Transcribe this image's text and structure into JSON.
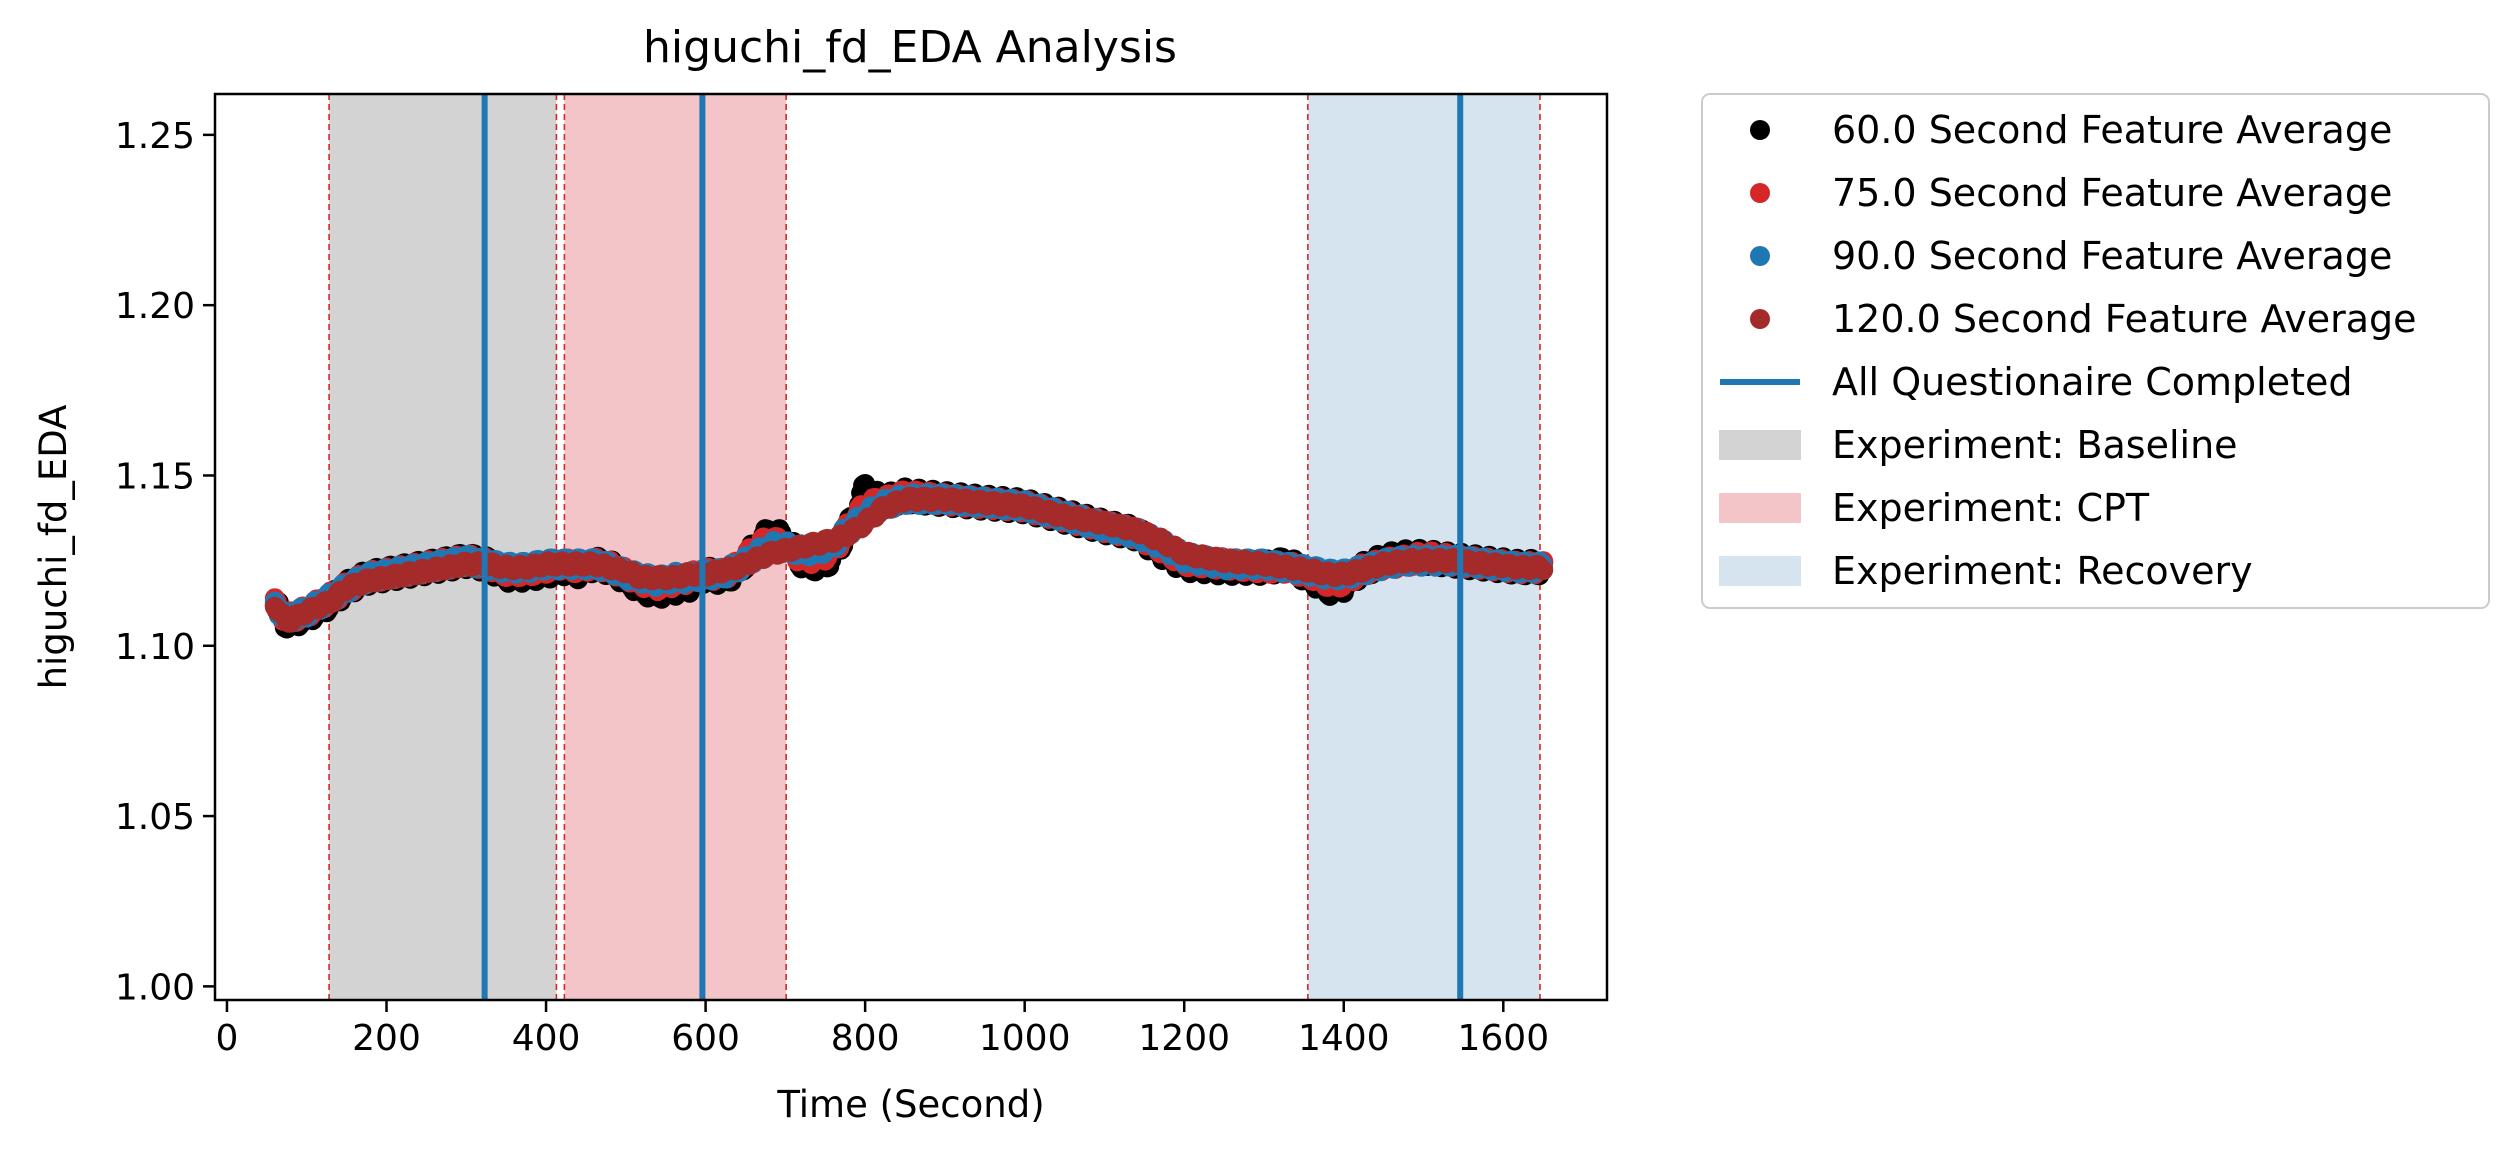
{
  "chart_data": {
    "type": "scatter",
    "title": "higuchi_fd_EDA Analysis",
    "xlabel": "Time (Second)",
    "ylabel": "higuchi_fd_EDA",
    "xlim": [
      -15,
      1730
    ],
    "ylim": [
      0.996,
      1.262
    ],
    "x_ticks": [
      0,
      200,
      400,
      600,
      800,
      1000,
      1200,
      1400,
      1600
    ],
    "x_tick_labels": [
      "0",
      "200",
      "400",
      "600",
      "800",
      "1000",
      "1200",
      "1400",
      "1600"
    ],
    "y_ticks": [
      1.0,
      1.05,
      1.1,
      1.15,
      1.2,
      1.25
    ],
    "y_tick_labels": [
      "1.00",
      "1.05",
      "1.10",
      "1.15",
      "1.20",
      "1.25"
    ],
    "grid": false,
    "legend_position": "outside-right",
    "series": [
      {
        "name": "60.0 Second Feature Average",
        "color": "#000000",
        "jitter": 0.0025,
        "x": [
          60,
          75,
          100,
          130,
          150,
          175,
          200,
          225,
          250,
          275,
          300,
          325,
          350,
          375,
          400,
          420,
          440,
          460,
          480,
          500,
          520,
          540,
          560,
          580,
          600,
          620,
          640,
          660,
          680,
          700,
          720,
          740,
          760,
          780,
          800,
          820,
          850,
          900,
          950,
          1000,
          1050,
          1100,
          1140,
          1170,
          1200,
          1250,
          1300,
          1330,
          1360,
          1380,
          1400,
          1420,
          1450,
          1480,
          1500,
          1540,
          1580,
          1620,
          1650
        ],
        "y": [
          1.112,
          1.107,
          1.109,
          1.113,
          1.117,
          1.12,
          1.121,
          1.122,
          1.123,
          1.124,
          1.125,
          1.124,
          1.121,
          1.121,
          1.122,
          1.123,
          1.122,
          1.124,
          1.123,
          1.12,
          1.117,
          1.116,
          1.117,
          1.118,
          1.121,
          1.12,
          1.122,
          1.128,
          1.133,
          1.131,
          1.125,
          1.124,
          1.126,
          1.135,
          1.146,
          1.142,
          1.144,
          1.143,
          1.142,
          1.141,
          1.138,
          1.135,
          1.133,
          1.128,
          1.124,
          1.123,
          1.123,
          1.124,
          1.12,
          1.117,
          1.118,
          1.122,
          1.125,
          1.126,
          1.126,
          1.125,
          1.124,
          1.123,
          1.123
        ]
      },
      {
        "name": "75.0 Second Feature Average",
        "color": "#d62728",
        "jitter": 0.002,
        "x": [
          60,
          75,
          100,
          130,
          150,
          175,
          200,
          225,
          250,
          275,
          300,
          325,
          350,
          375,
          400,
          420,
          440,
          460,
          480,
          500,
          520,
          540,
          560,
          580,
          600,
          620,
          640,
          660,
          680,
          700,
          720,
          740,
          760,
          780,
          800,
          820,
          850,
          900,
          950,
          1000,
          1050,
          1100,
          1140,
          1170,
          1200,
          1250,
          1300,
          1330,
          1360,
          1380,
          1400,
          1420,
          1450,
          1480,
          1500,
          1540,
          1580,
          1620,
          1650
        ],
        "y": [
          1.112,
          1.108,
          1.11,
          1.114,
          1.117,
          1.12,
          1.121,
          1.122,
          1.123,
          1.124,
          1.125,
          1.124,
          1.122,
          1.122,
          1.123,
          1.124,
          1.123,
          1.124,
          1.123,
          1.121,
          1.119,
          1.118,
          1.119,
          1.12,
          1.121,
          1.121,
          1.123,
          1.128,
          1.131,
          1.129,
          1.126,
          1.126,
          1.128,
          1.135,
          1.141,
          1.142,
          1.144,
          1.143,
          1.142,
          1.141,
          1.138,
          1.135,
          1.133,
          1.129,
          1.125,
          1.124,
          1.123,
          1.123,
          1.121,
          1.119,
          1.119,
          1.122,
          1.124,
          1.125,
          1.126,
          1.125,
          1.124,
          1.123,
          1.123
        ]
      },
      {
        "name": "90.0 Second Feature Average",
        "color": "#1f77b4",
        "jitter": 0.0018,
        "x": [
          60,
          75,
          100,
          130,
          150,
          175,
          200,
          225,
          250,
          275,
          300,
          325,
          350,
          375,
          400,
          420,
          440,
          460,
          480,
          500,
          520,
          540,
          560,
          580,
          600,
          620,
          640,
          660,
          680,
          700,
          720,
          740,
          760,
          780,
          800,
          820,
          850,
          900,
          950,
          1000,
          1050,
          1100,
          1140,
          1170,
          1200,
          1250,
          1300,
          1330,
          1360,
          1380,
          1400,
          1420,
          1450,
          1480,
          1500,
          1540,
          1580,
          1620,
          1650
        ],
        "y": [
          1.112,
          1.108,
          1.11,
          1.114,
          1.117,
          1.12,
          1.121,
          1.122,
          1.123,
          1.124,
          1.125,
          1.124,
          1.123,
          1.123,
          1.124,
          1.124,
          1.124,
          1.124,
          1.123,
          1.121,
          1.12,
          1.119,
          1.12,
          1.12,
          1.121,
          1.121,
          1.123,
          1.126,
          1.129,
          1.129,
          1.128,
          1.128,
          1.13,
          1.134,
          1.138,
          1.141,
          1.143,
          1.143,
          1.142,
          1.141,
          1.138,
          1.135,
          1.133,
          1.13,
          1.126,
          1.124,
          1.124,
          1.123,
          1.122,
          1.121,
          1.121,
          1.122,
          1.124,
          1.125,
          1.125,
          1.125,
          1.124,
          1.123,
          1.123
        ]
      },
      {
        "name": "120.0 Second Feature Average",
        "color": "#a52a2a",
        "jitter": 0.0008,
        "x": [
          60,
          75,
          100,
          130,
          150,
          175,
          200,
          225,
          250,
          275,
          300,
          325,
          350,
          375,
          400,
          420,
          440,
          460,
          480,
          500,
          520,
          540,
          560,
          580,
          600,
          620,
          640,
          660,
          680,
          700,
          720,
          740,
          760,
          780,
          800,
          820,
          850,
          900,
          950,
          1000,
          1050,
          1100,
          1140,
          1170,
          1200,
          1250,
          1300,
          1330,
          1360,
          1380,
          1400,
          1420,
          1450,
          1480,
          1500,
          1540,
          1580,
          1620,
          1650
        ],
        "y": [
          1.112,
          1.107,
          1.11,
          1.113,
          1.117,
          1.119,
          1.12,
          1.121,
          1.122,
          1.123,
          1.124,
          1.124,
          1.123,
          1.123,
          1.124,
          1.124,
          1.124,
          1.124,
          1.123,
          1.122,
          1.12,
          1.12,
          1.12,
          1.121,
          1.121,
          1.122,
          1.123,
          1.125,
          1.127,
          1.128,
          1.129,
          1.13,
          1.131,
          1.133,
          1.136,
          1.14,
          1.143,
          1.143,
          1.142,
          1.141,
          1.138,
          1.136,
          1.134,
          1.131,
          1.127,
          1.125,
          1.124,
          1.123,
          1.122,
          1.121,
          1.121,
          1.122,
          1.124,
          1.125,
          1.125,
          1.125,
          1.124,
          1.123,
          1.123
        ]
      }
    ],
    "vertical_lines": {
      "name": "All Questionaire Completed",
      "color": "#1f77b4",
      "x": [
        323,
        596,
        1546
      ]
    },
    "experiment_spans": [
      {
        "name": "Experiment: Baseline",
        "color": "#d3d3d3",
        "x_start": 128,
        "x_end": 413
      },
      {
        "name": "Experiment: CPT",
        "color": "#f4c5c8",
        "x_start": 423,
        "x_end": 701
      },
      {
        "name": "Experiment: Recovery",
        "color": "#d6e4f0",
        "x_start": 1355,
        "x_end": 1646
      }
    ],
    "boundary_lines": {
      "color": "#d62728",
      "x": [
        128,
        413,
        423,
        701,
        1355,
        1646
      ]
    }
  }
}
